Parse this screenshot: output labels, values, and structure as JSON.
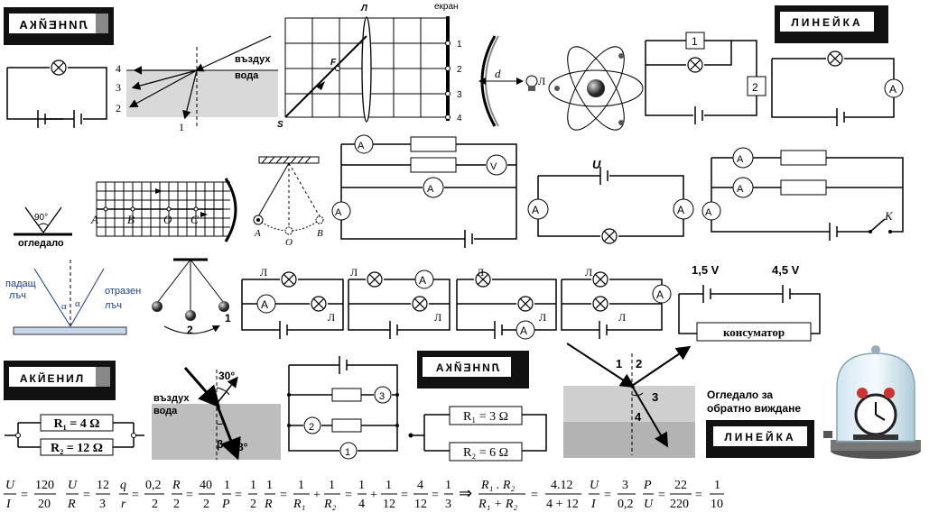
{
  "labels": {
    "lineika_mirrored": "ЛИНЕЙКА",
    "lineika_normal": "ЛИНЕЙКА",
    "akienil": "АКЙЕНИЛ",
    "air": "въздух",
    "water": "вода",
    "screen": "екран",
    "lens": "Л",
    "lamp": "Л",
    "d": "d",
    "F": "F",
    "S": "S",
    "mirror": "огледало",
    "angle90": "90°",
    "incident": "падащ",
    "incident2": "лъч",
    "reflected": "отразен",
    "reflected2": "лъч",
    "alpha": "α",
    "consumer": "консуматор",
    "v15": "1,5 V",
    "v45": "4,5 V",
    "U": "U",
    "K": "К",
    "angle30": "30°",
    "angle8": "8°",
    "beta": "β",
    "rear_mirror": "Огледало за",
    "rear_mirror2": "обратно виждане",
    "R1_4": "R₁ = 4 Ω",
    "R2_12": "R₂ = 12 Ω",
    "R1_3": "R₁ = 3 Ω",
    "R2_6": "R₂ = 6 Ω"
  },
  "screen_marks": [
    "1",
    "2",
    "3",
    "4"
  ],
  "ray_marks": [
    "4",
    "3",
    "2",
    "1"
  ],
  "grid_points": [
    "A",
    "B",
    "O",
    "C"
  ],
  "pendulum_points": [
    "A",
    "O",
    "B"
  ],
  "pendulum_marks": [
    "2",
    "1"
  ],
  "refraction_marks": [
    "1",
    "2",
    "3",
    "4"
  ],
  "meters": {
    "A": "A",
    "V": "V"
  },
  "formulas": "U/I = 120/20   U/R = 12/3   q/r = 0,2/2   R/2 = 40/2   1/P = 1/2   1/R = 1/R₁ + 1/R₂ = 1/4 + 1/12 = 4/12 = 1/3 ⇒ R₁·R₂/(R₁+R₂) = 4.12/(4+12)   U/I = 3/0,2   P/U = 22/220 = 1/10",
  "formula_terms": [
    "U",
    "I",
    "=",
    "120",
    "20",
    "U",
    "R",
    "=",
    "12",
    "3",
    "q",
    "r",
    "=",
    "0,2",
    "2",
    "R",
    "2",
    "=",
    "40",
    "2",
    "1",
    "P",
    "=",
    "1",
    "2",
    "1",
    "R",
    "=",
    "1",
    "R₁",
    "+",
    "1",
    "R₂",
    "=",
    "1",
    "4",
    "+",
    "1",
    "12",
    "=",
    "4",
    "12",
    "=",
    "1",
    "3",
    "⇒",
    "R₁ . R₂",
    "R₁ + R₂",
    "=",
    "4.12",
    "4 + 12",
    "U",
    "I",
    "=",
    "3",
    "0,2",
    "P",
    "U",
    "=",
    "22",
    "220",
    "=",
    "1",
    "10"
  ]
}
